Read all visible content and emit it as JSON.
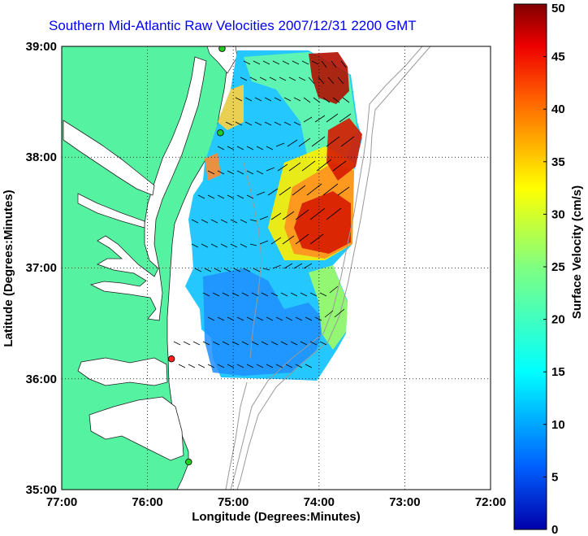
{
  "title": "Southern Mid-Atlantic Raw Velocities 2007/12/31 2200 GMT",
  "map": {
    "lon_range": [
      -77,
      -72
    ],
    "lat_range": [
      35,
      39
    ],
    "x_ticks": [
      "77:00",
      "76:00",
      "75:00",
      "74:00",
      "73:00",
      "72:00"
    ],
    "y_ticks": [
      "39:00",
      "38:00",
      "37:00",
      "36:00",
      "35:00"
    ],
    "xlabel": "Longitude (Degrees:Minutes)",
    "ylabel": "Latitude (Degrees:Minutes)",
    "grid": "dotted",
    "land_color": "#55f2a2",
    "water_color": "#ffffff",
    "bathymetry_color": "#9a9a9a"
  },
  "stations": [
    {
      "name": "station-north",
      "lon": -75.13,
      "lat": 38.98,
      "color": "#22cc22"
    },
    {
      "name": "station-central",
      "lon": -75.15,
      "lat": 38.22,
      "color": "#22cc22"
    },
    {
      "name": "station-south-red",
      "lon": -75.72,
      "lat": 36.18,
      "color": "#ff2020"
    },
    {
      "name": "station-south",
      "lon": -75.52,
      "lat": 35.25,
      "color": "#22cc22"
    }
  ],
  "colorbar": {
    "label": "Surface Velocity (cm/s)",
    "min": 0,
    "max": 50,
    "ticks": [
      "0",
      "5",
      "10",
      "15",
      "20",
      "25",
      "30",
      "35",
      "40",
      "45",
      "50"
    ],
    "colormap": "jet"
  },
  "velocity_field": {
    "units": "cm/s",
    "hotspots": [
      {
        "lon": -73.9,
        "lat": 37.35,
        "speed": 48
      },
      {
        "lon": -73.65,
        "lat": 37.95,
        "speed": 46
      },
      {
        "lon": -74.0,
        "lat": 38.75,
        "speed": 45
      },
      {
        "lon": -73.75,
        "lat": 38.55,
        "speed": 32
      },
      {
        "lon": -73.85,
        "lat": 36.55,
        "speed": 26
      },
      {
        "lon": -74.9,
        "lat": 38.6,
        "speed": 25
      }
    ]
  }
}
